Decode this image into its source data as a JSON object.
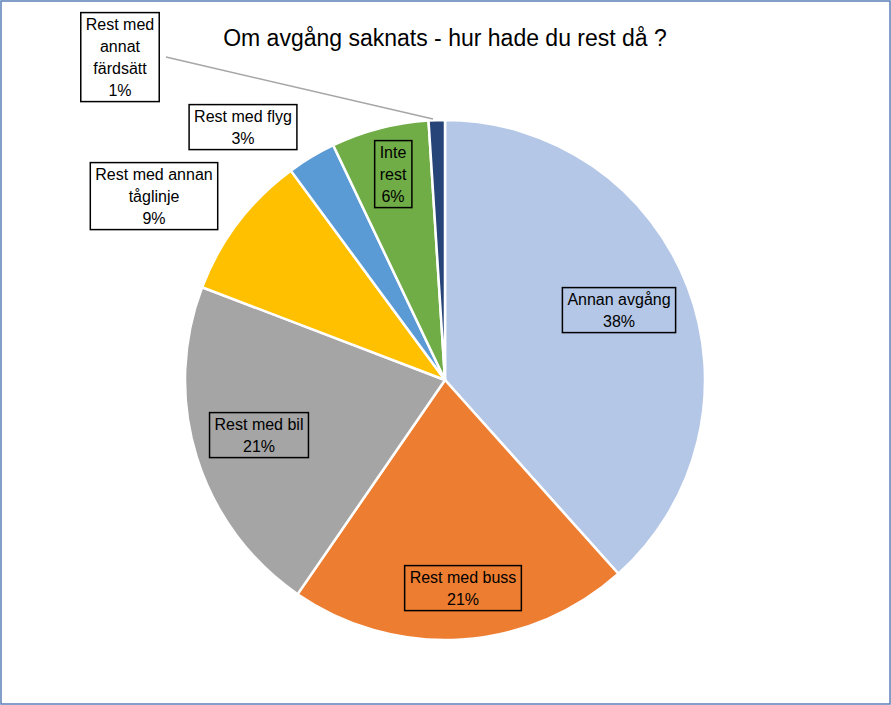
{
  "chart_data": {
    "type": "pie",
    "title": "Om avgång saknats - hur hade du rest då ?",
    "categories": [
      "Annan avgång",
      "Rest med buss",
      "Rest med bil",
      "Rest med annan tåglinje",
      "Rest med flyg",
      "Inte rest",
      "Rest med annat färdsätt"
    ],
    "values": [
      38,
      21,
      21,
      9,
      3,
      6,
      1
    ],
    "value_labels": [
      "38%",
      "21%",
      "21%",
      "9%",
      "3%",
      "6%",
      "1%"
    ],
    "colors": [
      "#b4c7e7",
      "#ed7d31",
      "#a5a5a5",
      "#ffc000",
      "#5b9bd5",
      "#70ad47",
      "#264478"
    ],
    "data_labels": true
  }
}
